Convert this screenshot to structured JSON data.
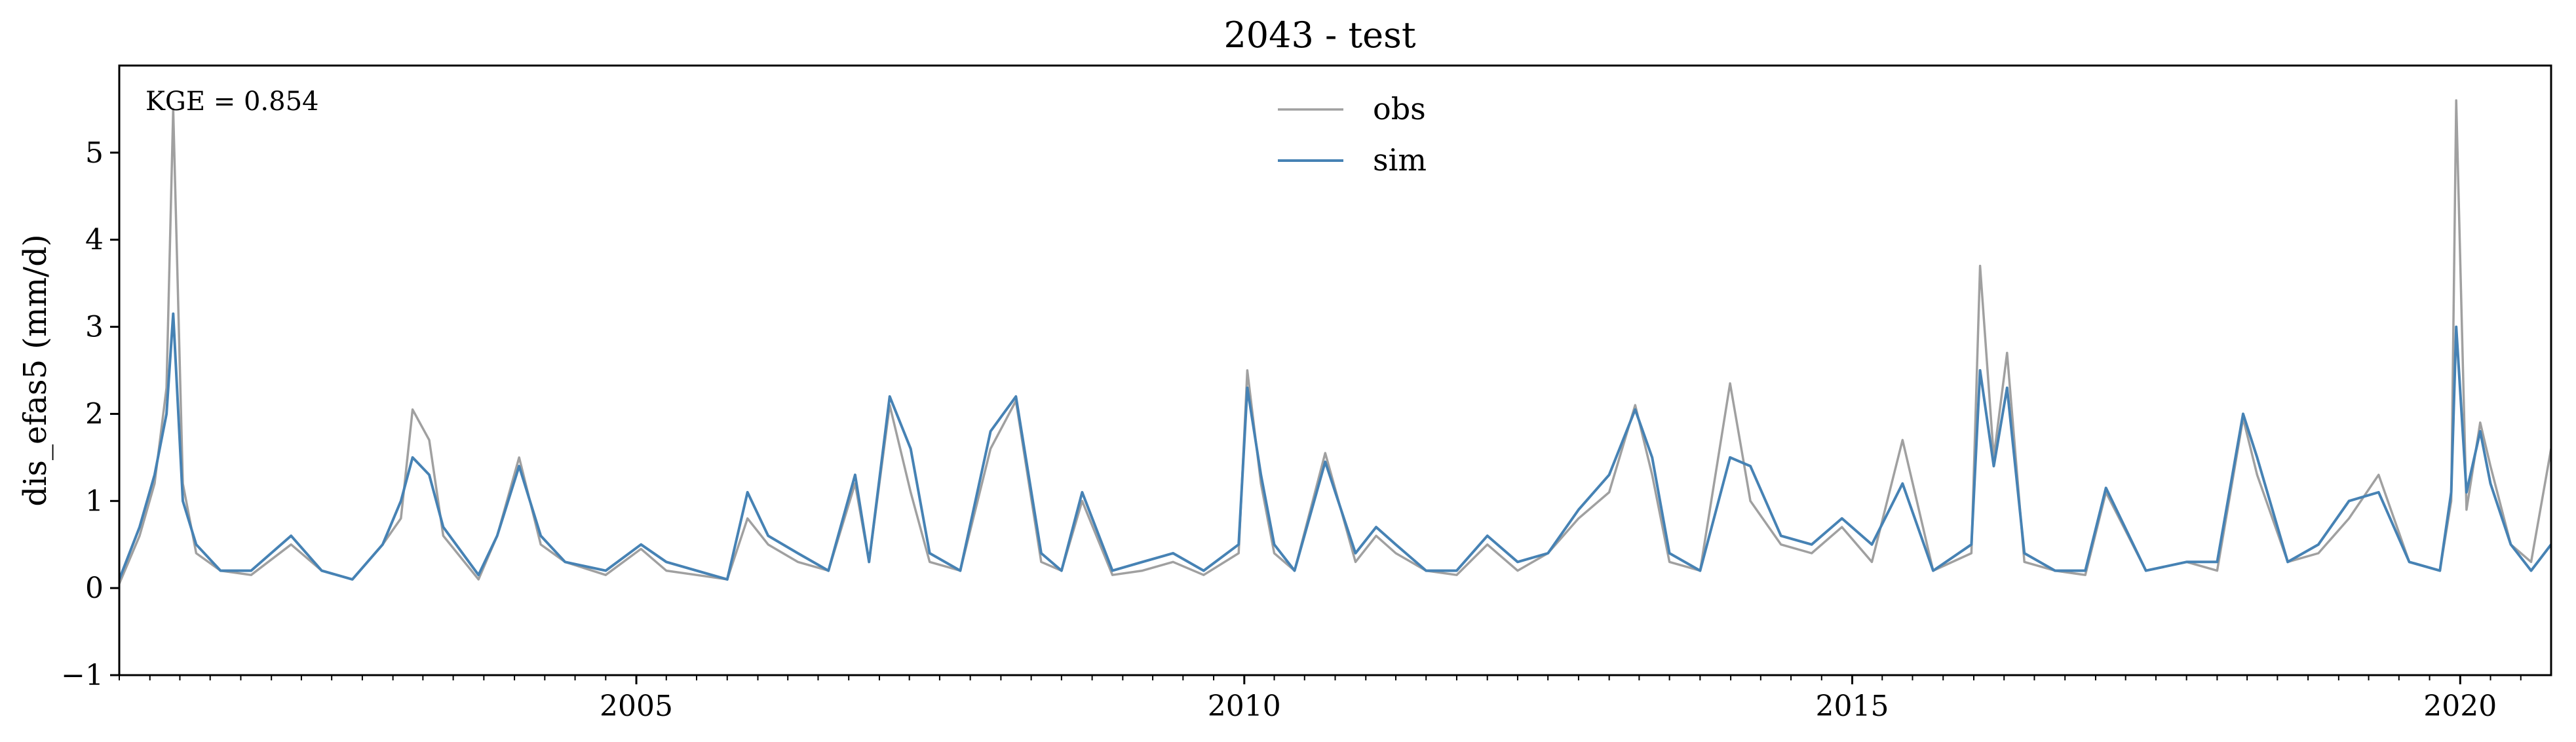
{
  "chart_data": {
    "type": "line",
    "title": "2043 - test",
    "xlabel": "",
    "ylabel": "dis_efas5 (mm/d)",
    "annotation": "KGE = 0.854",
    "x_range": [
      "2000-10-01",
      "2020-09-30"
    ],
    "ylim": [
      -1,
      6
    ],
    "y_ticks": [
      -1,
      0,
      1,
      2,
      3,
      4,
      5
    ],
    "y_tick_labels": [
      "−1",
      "0",
      "1",
      "2",
      "3",
      "4",
      "5"
    ],
    "x_ticks": [
      "2005-01-01",
      "2010-01-01",
      "2015-01-01",
      "2020-01-01"
    ],
    "x_tick_labels": [
      "2005",
      "2010",
      "2015",
      "2020"
    ],
    "grid": false,
    "legend": "top-center",
    "series": [
      {
        "name": "obs",
        "color": "#a0a0a0",
        "x": [
          "2000-10-01",
          "2000-12-01",
          "2001-01-15",
          "2001-02-20",
          "2001-03-12",
          "2001-04-10",
          "2001-05-20",
          "2001-08-01",
          "2001-11-01",
          "2002-03-01",
          "2002-06-01",
          "2002-09-01",
          "2002-12-01",
          "2003-01-25",
          "2003-03-01",
          "2003-04-20",
          "2003-06-01",
          "2003-09-15",
          "2003-11-10",
          "2004-01-15",
          "2004-03-20",
          "2004-06-01",
          "2004-10-01",
          "2005-01-15",
          "2005-04-01",
          "2005-07-01",
          "2005-10-01",
          "2005-12-01",
          "2006-02-01",
          "2006-05-01",
          "2006-08-01",
          "2006-10-20",
          "2006-12-01",
          "2007-02-01",
          "2007-04-05",
          "2007-06-01",
          "2007-09-01",
          "2007-12-01",
          "2008-02-15",
          "2008-05-01",
          "2008-07-01",
          "2008-09-01",
          "2008-12-01",
          "2009-03-01",
          "2009-06-01",
          "2009-09-01",
          "2009-12-15",
          "2010-01-10",
          "2010-02-20",
          "2010-04-01",
          "2010-06-01",
          "2010-09-01",
          "2010-12-01",
          "2011-02-01",
          "2011-04-01",
          "2011-07-01",
          "2011-10-01",
          "2012-01-01",
          "2012-04-01",
          "2012-07-01",
          "2012-10-01",
          "2013-01-01",
          "2013-03-20",
          "2013-05-10",
          "2013-07-01",
          "2013-10-01",
          "2013-12-30",
          "2014-03-01",
          "2014-06-01",
          "2014-09-01",
          "2014-12-01",
          "2015-03-01",
          "2015-06-01",
          "2015-09-01",
          "2015-12-25",
          "2016-01-20",
          "2016-03-01",
          "2016-04-10",
          "2016-06-01",
          "2016-09-01",
          "2016-12-01",
          "2017-02-01",
          "2017-06-01",
          "2017-10-01",
          "2018-01-01",
          "2018-03-20",
          "2018-05-01",
          "2018-08-01",
          "2018-11-01",
          "2019-02-01",
          "2019-05-01",
          "2019-08-01",
          "2019-11-01",
          "2019-12-05",
          "2019-12-20",
          "2020-01-20",
          "2020-03-01",
          "2020-04-01",
          "2020-06-01",
          "2020-08-01",
          "2020-09-30"
        ],
        "values": [
          0.05,
          0.6,
          1.2,
          2.3,
          5.5,
          1.2,
          0.4,
          0.2,
          0.15,
          0.5,
          0.2,
          0.1,
          0.5,
          0.8,
          2.05,
          1.7,
          0.6,
          0.1,
          0.6,
          1.5,
          0.5,
          0.3,
          0.15,
          0.45,
          0.2,
          0.15,
          0.1,
          0.8,
          0.5,
          0.3,
          0.2,
          1.2,
          0.3,
          2.1,
          1.1,
          0.3,
          0.2,
          1.6,
          2.15,
          0.3,
          0.2,
          1.0,
          0.15,
          0.2,
          0.3,
          0.15,
          0.4,
          2.5,
          1.2,
          0.4,
          0.2,
          1.55,
          0.3,
          0.6,
          0.4,
          0.2,
          0.15,
          0.5,
          0.2,
          0.4,
          0.8,
          1.1,
          2.1,
          1.3,
          0.3,
          0.2,
          2.35,
          1.0,
          0.5,
          0.4,
          0.7,
          0.3,
          1.7,
          0.2,
          0.4,
          3.7,
          1.5,
          2.7,
          0.3,
          0.2,
          0.15,
          1.1,
          0.2,
          0.3,
          0.2,
          1.95,
          1.3,
          0.3,
          0.4,
          0.8,
          1.3,
          0.3,
          0.2,
          1.0,
          5.6,
          0.9,
          1.9,
          1.4,
          0.5,
          0.3,
          1.6
        ]
      },
      {
        "name": "sim",
        "color": "#4682b4",
        "x": [
          "2000-10-01",
          "2000-12-01",
          "2001-01-15",
          "2001-02-20",
          "2001-03-12",
          "2001-04-10",
          "2001-05-20",
          "2001-08-01",
          "2001-11-01",
          "2002-03-01",
          "2002-06-01",
          "2002-09-01",
          "2002-12-01",
          "2003-01-25",
          "2003-03-01",
          "2003-04-20",
          "2003-06-01",
          "2003-09-15",
          "2003-11-10",
          "2004-01-15",
          "2004-03-20",
          "2004-06-01",
          "2004-10-01",
          "2005-01-15",
          "2005-04-01",
          "2005-07-01",
          "2005-10-01",
          "2005-12-01",
          "2006-02-01",
          "2006-05-01",
          "2006-08-01",
          "2006-10-20",
          "2006-12-01",
          "2007-02-01",
          "2007-04-05",
          "2007-06-01",
          "2007-09-01",
          "2007-12-01",
          "2008-02-15",
          "2008-05-01",
          "2008-07-01",
          "2008-09-01",
          "2008-12-01",
          "2009-03-01",
          "2009-06-01",
          "2009-09-01",
          "2009-12-15",
          "2010-01-10",
          "2010-02-20",
          "2010-04-01",
          "2010-06-01",
          "2010-09-01",
          "2010-12-01",
          "2011-02-01",
          "2011-04-01",
          "2011-07-01",
          "2011-10-01",
          "2012-01-01",
          "2012-04-01",
          "2012-07-01",
          "2012-10-01",
          "2013-01-01",
          "2013-03-20",
          "2013-05-10",
          "2013-07-01",
          "2013-10-01",
          "2013-12-30",
          "2014-03-01",
          "2014-06-01",
          "2014-09-01",
          "2014-12-01",
          "2015-03-01",
          "2015-06-01",
          "2015-09-01",
          "2015-12-25",
          "2016-01-20",
          "2016-03-01",
          "2016-04-10",
          "2016-06-01",
          "2016-09-01",
          "2016-12-01",
          "2017-02-01",
          "2017-06-01",
          "2017-10-01",
          "2018-01-01",
          "2018-03-20",
          "2018-05-01",
          "2018-08-01",
          "2018-11-01",
          "2019-02-01",
          "2019-05-01",
          "2019-08-01",
          "2019-11-01",
          "2019-12-05",
          "2019-12-20",
          "2020-01-20",
          "2020-03-01",
          "2020-04-01",
          "2020-06-01",
          "2020-08-01",
          "2020-09-30"
        ],
        "values": [
          0.1,
          0.7,
          1.3,
          2.0,
          3.15,
          1.0,
          0.5,
          0.2,
          0.2,
          0.6,
          0.2,
          0.1,
          0.5,
          1.0,
          1.5,
          1.3,
          0.7,
          0.15,
          0.6,
          1.4,
          0.6,
          0.3,
          0.2,
          0.5,
          0.3,
          0.2,
          0.1,
          1.1,
          0.6,
          0.4,
          0.2,
          1.3,
          0.3,
          2.2,
          1.6,
          0.4,
          0.2,
          1.8,
          2.2,
          0.4,
          0.2,
          1.1,
          0.2,
          0.3,
          0.4,
          0.2,
          0.5,
          2.3,
          1.3,
          0.5,
          0.2,
          1.45,
          0.4,
          0.7,
          0.5,
          0.2,
          0.2,
          0.6,
          0.3,
          0.4,
          0.9,
          1.3,
          2.05,
          1.5,
          0.4,
          0.2,
          1.5,
          1.4,
          0.6,
          0.5,
          0.8,
          0.5,
          1.2,
          0.2,
          0.5,
          2.5,
          1.4,
          2.3,
          0.4,
          0.2,
          0.2,
          1.15,
          0.2,
          0.3,
          0.3,
          2.0,
          1.5,
          0.3,
          0.5,
          1.0,
          1.1,
          0.3,
          0.2,
          1.1,
          3.0,
          1.1,
          1.8,
          1.2,
          0.5,
          0.2,
          0.5
        ]
      }
    ]
  }
}
